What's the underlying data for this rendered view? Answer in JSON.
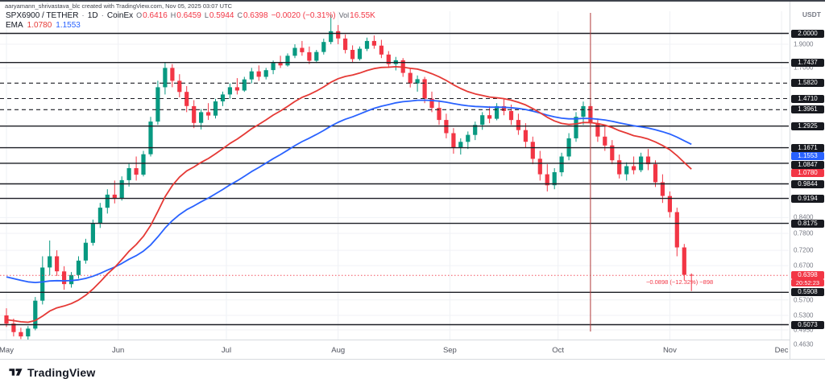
{
  "meta": {
    "attribution": "aaryamann_shrivastava_blc created with TradingView.com, Nov 05, 2025 03:07 UTC"
  },
  "legend": {
    "symbol": "SPX6900 / TETHER",
    "separator": "·",
    "timeframe": "1D",
    "exchange": "CoinEx",
    "o_label": "O",
    "o": "0.6416",
    "h_label": "H",
    "h": "0.6459",
    "l_label": "L",
    "l": "0.5944",
    "c_label": "C",
    "c": "0.6398",
    "change": "−0.0020 (−0.31%)",
    "vol_label": "Vol",
    "vol": "16.55K"
  },
  "indicator": {
    "label": "EMA",
    "fast_value": "1.0780",
    "slow_value": "1.1553",
    "fast_color": "#e53935",
    "slow_color": "#2962ff"
  },
  "price_axis": {
    "currency": "USDT",
    "plain_ticks": [
      {
        "label": "1.9000",
        "value": 1.9
      },
      {
        "label": "1.7000",
        "value": 1.7
      },
      {
        "label": "0.8400",
        "value": 0.84
      },
      {
        "label": "0.7800",
        "value": 0.78
      },
      {
        "label": "0.7200",
        "value": 0.72
      },
      {
        "label": "0.6700",
        "value": 0.67
      },
      {
        "label": "0.5700",
        "value": 0.57
      },
      {
        "label": "0.5300",
        "value": 0.53
      },
      {
        "label": "0.4950",
        "value": 0.495
      },
      {
        "label": "0.4630",
        "value": 0.463
      }
    ]
  },
  "annotation": {
    "text": "−0.0898 (−12.32%) −898"
  },
  "footer": {
    "logo_text": "TradingView"
  },
  "chart_data": {
    "type": "candlestick",
    "symbol": "SPX6900 / TETHER",
    "exchange": "CoinEx",
    "timeframe": "1D",
    "scale": "log",
    "ylim": [
      0.45,
      2.2
    ],
    "up_color": "#089981",
    "down_color": "#f23645",
    "x_axis": {
      "months": [
        {
          "label": "May",
          "index": 0
        },
        {
          "label": "Jun",
          "index": 15.5
        },
        {
          "label": "Jul",
          "index": 30.5
        },
        {
          "label": "Aug",
          "index": 46
        },
        {
          "label": "Sep",
          "index": 61.5
        },
        {
          "label": "Oct",
          "index": 76.5
        },
        {
          "label": "Nov",
          "index": 92
        },
        {
          "label": "Dec",
          "index": 107.5
        }
      ]
    },
    "levels": [
      {
        "label": "2.0000",
        "value": 2.0,
        "style": "solid"
      },
      {
        "label": "1.7437",
        "value": 1.7437,
        "style": "solid"
      },
      {
        "label": "1.5820",
        "value": 1.582,
        "style": "dashed"
      },
      {
        "label": "1.4710",
        "value": 1.471,
        "style": "dashed"
      },
      {
        "label": "1.3961",
        "value": 1.3961,
        "style": "dashed"
      },
      {
        "label": "1.2925",
        "value": 1.2925,
        "style": "solid"
      },
      {
        "label": "1.1671",
        "value": 1.1671,
        "style": "solid"
      },
      {
        "label": "1.0847",
        "value": 1.0847,
        "style": "solid"
      },
      {
        "label": "0.9844",
        "value": 0.9844,
        "style": "solid"
      },
      {
        "label": "0.9194",
        "value": 0.9194,
        "style": "solid"
      },
      {
        "label": "0.8175",
        "value": 0.8175,
        "style": "solid"
      },
      {
        "label": "0.5908",
        "value": 0.5908,
        "style": "solid"
      },
      {
        "label": "0.5073",
        "value": 0.5073,
        "style": "solid"
      }
    ],
    "last_price": {
      "label": "0.6398",
      "value": 0.6398,
      "countdown": "20:52:23"
    },
    "vertical_line": {
      "index": 81,
      "color": "#b03a3a"
    },
    "candles": [
      [
        0.53,
        0.548,
        0.502,
        0.51
      ],
      [
        0.51,
        0.522,
        0.48,
        0.49
      ],
      [
        0.49,
        0.5,
        0.474,
        0.48
      ],
      [
        0.48,
        0.504,
        0.472,
        0.498
      ],
      [
        0.498,
        0.578,
        0.494,
        0.568
      ],
      [
        0.568,
        0.7,
        0.558,
        0.664
      ],
      [
        0.664,
        0.754,
        0.64,
        0.7
      ],
      [
        0.7,
        0.72,
        0.638,
        0.652
      ],
      [
        0.652,
        0.668,
        0.598,
        0.614
      ],
      [
        0.614,
        0.65,
        0.604,
        0.641
      ],
      [
        0.641,
        0.7,
        0.63,
        0.686
      ],
      [
        0.686,
        0.76,
        0.676,
        0.746
      ],
      [
        0.746,
        0.832,
        0.736,
        0.816
      ],
      [
        0.816,
        0.9,
        0.8,
        0.88
      ],
      [
        0.88,
        0.96,
        0.856,
        0.936
      ],
      [
        0.936,
        1.0,
        0.898,
        0.918
      ],
      [
        0.918,
        1.02,
        0.91,
        1.002
      ],
      [
        1.002,
        1.082,
        0.972,
        1.06
      ],
      [
        1.06,
        1.12,
        1.0,
        1.028
      ],
      [
        1.028,
        1.15,
        1.02,
        1.132
      ],
      [
        1.132,
        1.35,
        1.12,
        1.32
      ],
      [
        1.32,
        1.6,
        1.3,
        1.552
      ],
      [
        1.552,
        1.7437,
        1.5,
        1.7
      ],
      [
        1.7,
        1.73,
        1.552,
        1.6
      ],
      [
        1.6,
        1.65,
        1.48,
        1.518
      ],
      [
        1.518,
        1.56,
        1.38,
        1.42
      ],
      [
        1.42,
        1.46,
        1.28,
        1.312
      ],
      [
        1.312,
        1.4,
        1.272,
        1.38
      ],
      [
        1.38,
        1.44,
        1.33,
        1.358
      ],
      [
        1.358,
        1.47,
        1.34,
        1.452
      ],
      [
        1.452,
        1.52,
        1.42,
        1.5
      ],
      [
        1.5,
        1.58,
        1.47,
        1.552
      ],
      [
        1.552,
        1.62,
        1.5,
        1.528
      ],
      [
        1.528,
        1.63,
        1.518,
        1.61
      ],
      [
        1.61,
        1.7,
        1.58,
        1.672
      ],
      [
        1.672,
        1.72,
        1.6,
        1.63
      ],
      [
        1.63,
        1.7,
        1.61,
        1.682
      ],
      [
        1.682,
        1.76,
        1.65,
        1.74
      ],
      [
        1.74,
        1.8,
        1.7,
        1.72
      ],
      [
        1.72,
        1.82,
        1.71,
        1.8
      ],
      [
        1.8,
        1.9,
        1.78,
        1.868
      ],
      [
        1.868,
        1.93,
        1.8,
        1.83
      ],
      [
        1.83,
        1.88,
        1.73,
        1.758
      ],
      [
        1.758,
        1.85,
        1.74,
        1.832
      ],
      [
        1.832,
        1.95,
        1.81,
        1.92
      ],
      [
        1.92,
        2.18,
        1.9,
        2.02
      ],
      [
        2.02,
        2.08,
        1.9,
        1.952
      ],
      [
        1.952,
        1.99,
        1.82,
        1.85
      ],
      [
        1.85,
        1.89,
        1.74,
        1.772
      ],
      [
        1.772,
        1.88,
        1.76,
        1.86
      ],
      [
        1.86,
        1.96,
        1.84,
        1.93
      ],
      [
        1.93,
        1.98,
        1.86,
        1.888
      ],
      [
        1.888,
        1.94,
        1.78,
        1.81
      ],
      [
        1.81,
        1.84,
        1.7,
        1.73
      ],
      [
        1.73,
        1.79,
        1.68,
        1.762
      ],
      [
        1.762,
        1.78,
        1.63,
        1.66
      ],
      [
        1.66,
        1.7,
        1.55,
        1.58
      ],
      [
        1.58,
        1.64,
        1.52,
        1.612
      ],
      [
        1.612,
        1.63,
        1.44,
        1.47
      ],
      [
        1.47,
        1.52,
        1.38,
        1.408
      ],
      [
        1.408,
        1.46,
        1.3,
        1.33
      ],
      [
        1.33,
        1.37,
        1.22,
        1.25
      ],
      [
        1.25,
        1.28,
        1.135,
        1.168
      ],
      [
        1.168,
        1.22,
        1.13,
        1.2
      ],
      [
        1.2,
        1.26,
        1.16,
        1.24
      ],
      [
        1.24,
        1.32,
        1.21,
        1.3
      ],
      [
        1.3,
        1.38,
        1.27,
        1.36
      ],
      [
        1.36,
        1.42,
        1.31,
        1.338
      ],
      [
        1.338,
        1.44,
        1.328,
        1.42
      ],
      [
        1.42,
        1.47,
        1.36,
        1.388
      ],
      [
        1.388,
        1.43,
        1.3,
        1.33
      ],
      [
        1.33,
        1.37,
        1.24,
        1.268
      ],
      [
        1.268,
        1.31,
        1.17,
        1.2
      ],
      [
        1.2,
        1.23,
        1.08,
        1.108
      ],
      [
        1.108,
        1.15,
        1.0,
        1.03
      ],
      [
        1.03,
        1.08,
        0.95,
        0.978
      ],
      [
        0.978,
        1.06,
        0.96,
        1.04
      ],
      [
        1.04,
        1.14,
        1.02,
        1.12
      ],
      [
        1.12,
        1.25,
        1.1,
        1.22
      ],
      [
        1.22,
        1.38,
        1.2,
        1.35
      ],
      [
        1.35,
        1.45,
        1.3,
        1.42
      ],
      [
        1.42,
        1.44,
        1.28,
        1.31
      ],
      [
        1.31,
        1.34,
        1.2,
        1.23
      ],
      [
        1.23,
        1.29,
        1.15,
        1.18
      ],
      [
        1.18,
        1.21,
        1.08,
        1.1
      ],
      [
        1.1,
        1.13,
        1.01,
        1.03
      ],
      [
        1.03,
        1.09,
        1.0,
        1.07
      ],
      [
        1.07,
        1.12,
        1.03,
        1.05
      ],
      [
        1.05,
        1.14,
        1.04,
        1.12
      ],
      [
        1.12,
        1.16,
        1.05,
        1.08
      ],
      [
        1.08,
        1.1,
        0.97,
        0.992
      ],
      [
        0.992,
        1.03,
        0.9,
        0.93
      ],
      [
        0.93,
        0.95,
        0.84,
        0.862
      ],
      [
        0.862,
        0.88,
        0.7,
        0.73
      ],
      [
        0.73,
        0.742,
        0.625,
        0.6416
      ],
      [
        0.6416,
        0.6459,
        0.5944,
        0.6398
      ]
    ]
  }
}
